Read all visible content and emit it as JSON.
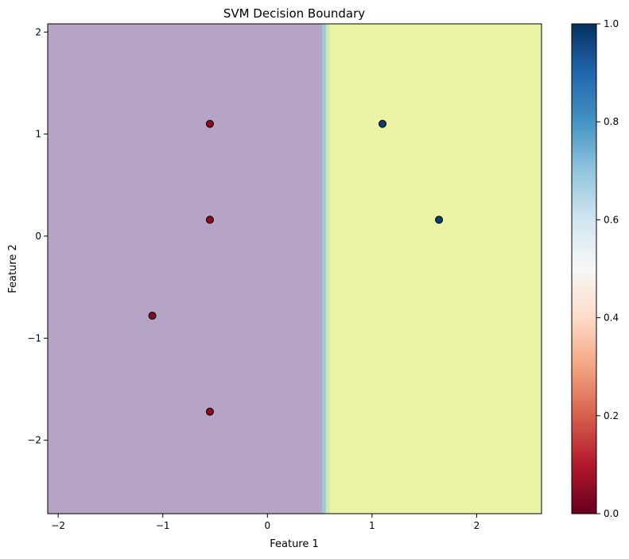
{
  "chart_data": {
    "type": "scatter",
    "title": "SVM Decision Boundary",
    "xlabel": "Feature 1",
    "ylabel": "Feature 2",
    "xlim": [
      -2.1,
      2.62
    ],
    "ylim": [
      -2.72,
      2.08
    ],
    "x_ticks": [
      -2,
      -1,
      0,
      1,
      2
    ],
    "y_ticks": [
      -2,
      -1,
      0,
      1,
      2
    ],
    "x_tick_labels": [
      "−2",
      "−1",
      "0",
      "1",
      "2"
    ],
    "y_tick_labels": [
      "−2",
      "−1",
      "0",
      "1",
      "2"
    ],
    "grid": false,
    "background_regions": {
      "boundary_x": 0.56,
      "transition_width": 0.07,
      "left_color": "#b5a4c5",
      "right_color": "#eaf2a6",
      "transition_colors": [
        "#9ecbd5",
        "#cfe7b8"
      ]
    },
    "points": [
      {
        "x": -0.55,
        "y": 1.1,
        "class": 0,
        "color": "#8b0a1f"
      },
      {
        "x": -0.55,
        "y": 0.16,
        "class": 0,
        "color": "#8b0a1f"
      },
      {
        "x": -1.1,
        "y": -0.78,
        "class": 0,
        "color": "#8b0a1f"
      },
      {
        "x": -0.55,
        "y": -1.72,
        "class": 0,
        "color": "#8b0a1f"
      },
      {
        "x": 1.1,
        "y": 1.1,
        "class": 1,
        "color": "#0d3d6b"
      },
      {
        "x": 1.64,
        "y": 0.16,
        "class": 1,
        "color": "#0d3d6b"
      }
    ],
    "colorbar": {
      "colormap": "RdBu",
      "range": [
        0.0,
        1.0
      ],
      "ticks": [
        0.0,
        0.2,
        0.4,
        0.6,
        0.8,
        1.0
      ],
      "tick_labels": [
        "0.0",
        "0.2",
        "0.4",
        "0.6",
        "0.8",
        "1.0"
      ],
      "stops": [
        "#67001f",
        "#b2182b",
        "#d6604d",
        "#f4a582",
        "#fddbc7",
        "#f7f7f7",
        "#d1e5f0",
        "#92c5de",
        "#4393c3",
        "#2166ac",
        "#053061"
      ]
    }
  }
}
